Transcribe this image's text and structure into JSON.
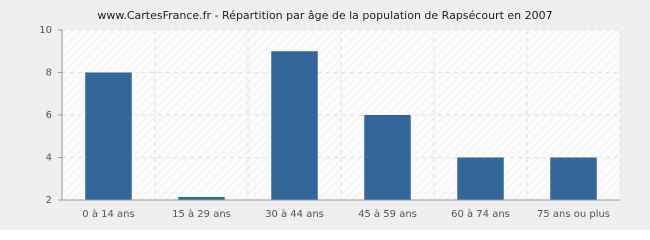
{
  "chart_data": {
    "type": "bar",
    "title": "www.CartesFrance.fr - Répartition par âge de la population de Rapsécourt en 2007",
    "categories": [
      "0 à 14 ans",
      "15 à 29 ans",
      "30 à 44 ans",
      "45 à 59 ans",
      "60 à 74 ans",
      "75 ans ou plus"
    ],
    "values": [
      8,
      2,
      9,
      6,
      4,
      4
    ],
    "color": "#336699",
    "ylim": [
      2,
      10
    ],
    "yticks": [
      2,
      4,
      6,
      8,
      10
    ],
    "grid": true
  }
}
